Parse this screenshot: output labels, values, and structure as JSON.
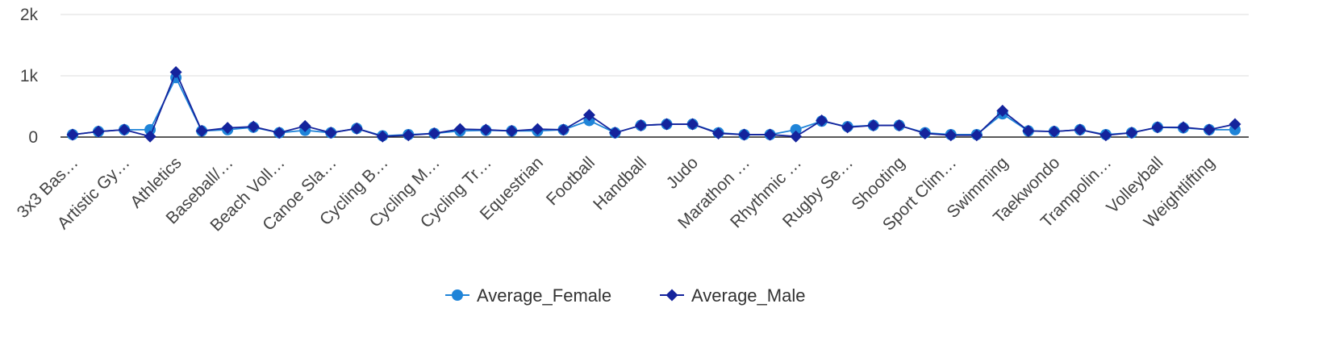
{
  "chart_data": {
    "type": "line",
    "title": "",
    "xlabel": "",
    "ylabel": "",
    "ylim": [
      0,
      2000
    ],
    "y_ticks": [
      "0",
      "1k",
      "2k"
    ],
    "grid": true,
    "legend_position": "bottom",
    "categories": [
      "3x3 Bas…",
      "",
      "Artistic Gy…",
      "",
      "Athletics",
      "",
      "Baseball/…",
      "",
      "Beach Voll…",
      "",
      "Canoe Sla…",
      "",
      "Cycling B…",
      "",
      "Cycling M…",
      "",
      "Cycling Tr…",
      "",
      "Equestrian",
      "",
      "Football",
      "",
      "Handball",
      "",
      "Judo",
      "",
      "Marathon …",
      "",
      "Rhythmic …",
      "",
      "Rugby Se…",
      "",
      "Shooting",
      "",
      "Sport Clim…",
      "",
      "Swimming",
      "",
      "Taekwondo",
      "",
      "Trampolin…",
      "",
      "Volleyball",
      "",
      "Weightlifting",
      ""
    ],
    "series": [
      {
        "name": "Average_Female",
        "color": "#1f84d8",
        "marker": "circle",
        "values": [
          40,
          90,
          120,
          120,
          970,
          100,
          120,
          160,
          70,
          110,
          70,
          140,
          20,
          40,
          60,
          100,
          110,
          100,
          100,
          120,
          270,
          70,
          190,
          210,
          210,
          70,
          40,
          40,
          120,
          260,
          170,
          190,
          190,
          70,
          40,
          40,
          380,
          100,
          90,
          120,
          40,
          70,
          160,
          150,
          120,
          120
        ]
      },
      {
        "name": "Average_Male",
        "color": "#14239c",
        "marker": "diamond",
        "values": [
          40,
          90,
          120,
          10,
          1060,
          100,
          150,
          170,
          70,
          180,
          70,
          140,
          10,
          30,
          60,
          130,
          120,
          100,
          130,
          120,
          360,
          70,
          190,
          210,
          210,
          60,
          40,
          40,
          10,
          270,
          160,
          190,
          190,
          60,
          30,
          30,
          430,
          100,
          90,
          120,
          30,
          70,
          160,
          160,
          120,
          210
        ]
      }
    ]
  }
}
